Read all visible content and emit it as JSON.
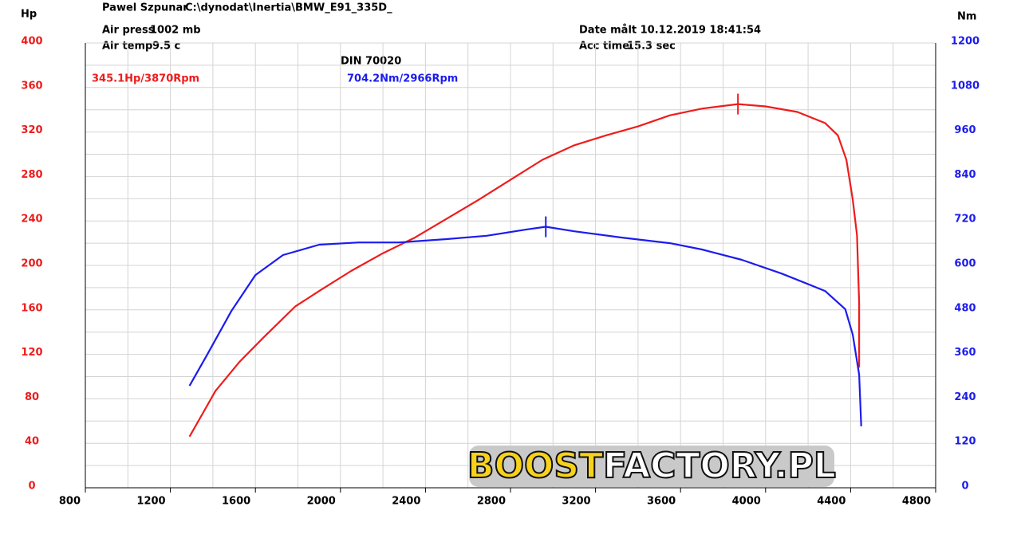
{
  "chart_data": {
    "type": "line",
    "operator": "Pawel Szpunar",
    "file": "C:\\dynodat\\Inertia\\BMW_E91_335D_",
    "air_press_label": "Air press",
    "air_press": "1002 mb",
    "air_temp_label": "Air temp",
    "air_temp": "9.5 c",
    "date": "Date målt 10.12.2019 18:41:54",
    "acc_time_label": "Acc time",
    "acc_time": "15.3 sec",
    "title": "DIN 70020",
    "ylabel": "Hp",
    "y2label": "Nm",
    "logo": [
      "BOOST",
      "FACTORY.PL"
    ],
    "xlim": [
      800,
      4800
    ],
    "xticks": [
      800,
      1200,
      1600,
      2000,
      2400,
      2800,
      3200,
      3600,
      4000,
      4400,
      4800
    ],
    "ylim": [
      0,
      400
    ],
    "yticks": [
      0,
      40,
      80,
      120,
      160,
      200,
      240,
      280,
      320,
      360,
      400
    ],
    "y2lim": [
      0,
      1200
    ],
    "y2ticks": [
      0,
      120,
      240,
      360,
      480,
      600,
      720,
      840,
      960,
      1080,
      1200
    ],
    "grid": true,
    "series": [
      {
        "color": "#ee1c1c",
        "x": [
          1290,
          1412,
          1524,
          1637,
          1787,
          1900,
          2050,
          2200,
          2350,
          2500,
          2650,
          2800,
          2950,
          3100,
          3250,
          3400,
          3550,
          3700,
          3870,
          4000,
          4150,
          4280,
          4340,
          4380,
          4410,
          4430,
          4440,
          4440
        ],
        "values": [
          46,
          87,
          113,
          135,
          163,
          177,
          195,
          211,
          225,
          242,
          259,
          277,
          295,
          308,
          317,
          325,
          335,
          341,
          345.1,
          343,
          338,
          328,
          317,
          295,
          259,
          227,
          166,
          108
        ]
      },
      {
        "color": "#1c1ced",
        "axis": "y2",
        "x": [
          1290,
          1373,
          1487,
          1600,
          1730,
          1900,
          2087,
          2275,
          2500,
          2688,
          2875,
          2966,
          3100,
          3325,
          3550,
          3700,
          3888,
          4075,
          4280,
          4375,
          4410,
          4440,
          4450
        ],
        "values": [
          275,
          359,
          477,
          574,
          628,
          656,
          662,
          662,
          671,
          680,
          697,
          704.2,
          692,
          675,
          660,
          643,
          615,
          578,
          531,
          482,
          413,
          305,
          166
        ]
      }
    ],
    "annotations": [
      {
        "text": "345.1Hp/3870Rpm",
        "x": 3870,
        "y": 345.1,
        "series": 0
      },
      {
        "text": "704.2Nm/2966Rpm",
        "x": 2966,
        "y": 704.2,
        "series": 1
      }
    ]
  }
}
